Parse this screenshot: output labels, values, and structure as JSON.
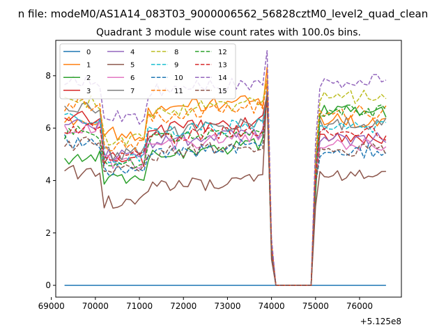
{
  "suptitle": "n file: modeM0/AS1A14_083T03_9000006562_56828cztM0_level2_quad_clean",
  "chart_data": {
    "type": "line",
    "title": "Quadrant 3 module wise count rates with 100.0s bins.",
    "xlabel": "",
    "ylabel": "",
    "x_offset_label": "+5.125e8",
    "xlim": [
      69100,
      76950
    ],
    "ylim": [
      -0.45,
      9.35
    ],
    "x_ticks": [
      69000,
      70000,
      71000,
      72000,
      73000,
      74000,
      75000,
      76000
    ],
    "y_ticks": [
      0,
      2,
      4,
      6,
      8
    ],
    "grid": false,
    "legend_position": "top-left",
    "series": [
      {
        "name": "0",
        "color": "#1f77b4",
        "dash": "solid",
        "base": 0.0,
        "g1": 0.0,
        "g2": 0.0,
        "g3": 0.0
      },
      {
        "name": "1",
        "color": "#ff7f0e",
        "dash": "solid",
        "base": 6.3,
        "g1": 5.8,
        "g2": 6.7,
        "g3": 6.3
      },
      {
        "name": "2",
        "color": "#2ca02c",
        "dash": "solid",
        "base": 4.9,
        "g1": 4.0,
        "g2": 5.0,
        "g3": 6.6
      },
      {
        "name": "3",
        "color": "#d62728",
        "dash": "solid",
        "base": 6.4,
        "g1": 4.8,
        "g2": 5.9,
        "g3": 5.6
      },
      {
        "name": "4",
        "color": "#9467bd",
        "dash": "solid",
        "base": 6.1,
        "g1": 5.0,
        "g2": 5.4,
        "g3": 5.6
      },
      {
        "name": "5",
        "color": "#8c564b",
        "dash": "solid",
        "base": 4.3,
        "g1": 3.2,
        "g2": 3.7,
        "g3": 4.2
      },
      {
        "name": "6",
        "color": "#e377c2",
        "dash": "solid",
        "base": 6.0,
        "g1": 4.7,
        "g2": 5.3,
        "g3": 5.4
      },
      {
        "name": "7",
        "color": "#7f7f7f",
        "dash": "solid",
        "base": 6.7,
        "g1": 5.0,
        "g2": 5.8,
        "g3": 6.2
      },
      {
        "name": "8",
        "color": "#bcbd22",
        "dash": "dashed",
        "base": 7.0,
        "g1": 5.6,
        "g2": 6.6,
        "g3": 7.2
      },
      {
        "name": "9",
        "color": "#17becf",
        "dash": "dashed",
        "base": 6.3,
        "g1": 4.9,
        "g2": 5.8,
        "g3": 6.0
      },
      {
        "name": "10",
        "color": "#1f77b4",
        "dash": "dashed",
        "base": 5.5,
        "g1": 4.4,
        "g2": 5.0,
        "g3": 5.1
      },
      {
        "name": "11",
        "color": "#ff7f0e",
        "dash": "dashed",
        "base": 6.9,
        "g1": 5.3,
        "g2": 6.4,
        "g3": 6.6
      },
      {
        "name": "12",
        "color": "#2ca02c",
        "dash": "dashed",
        "base": 5.8,
        "g1": 4.7,
        "g2": 5.5,
        "g3": 6.7
      },
      {
        "name": "13",
        "color": "#d62728",
        "dash": "dashed",
        "base": 6.0,
        "g1": 4.9,
        "g2": 5.6,
        "g3": 5.8
      },
      {
        "name": "14",
        "color": "#9467bd",
        "dash": "dashed",
        "base": 7.8,
        "g1": 6.4,
        "g2": 7.4,
        "g3": 7.8
      },
      {
        "name": "15",
        "color": "#8c564b",
        "dash": "dashed",
        "base": 5.4,
        "g1": 4.4,
        "g2": 5.0,
        "g3": 5.2
      }
    ]
  }
}
